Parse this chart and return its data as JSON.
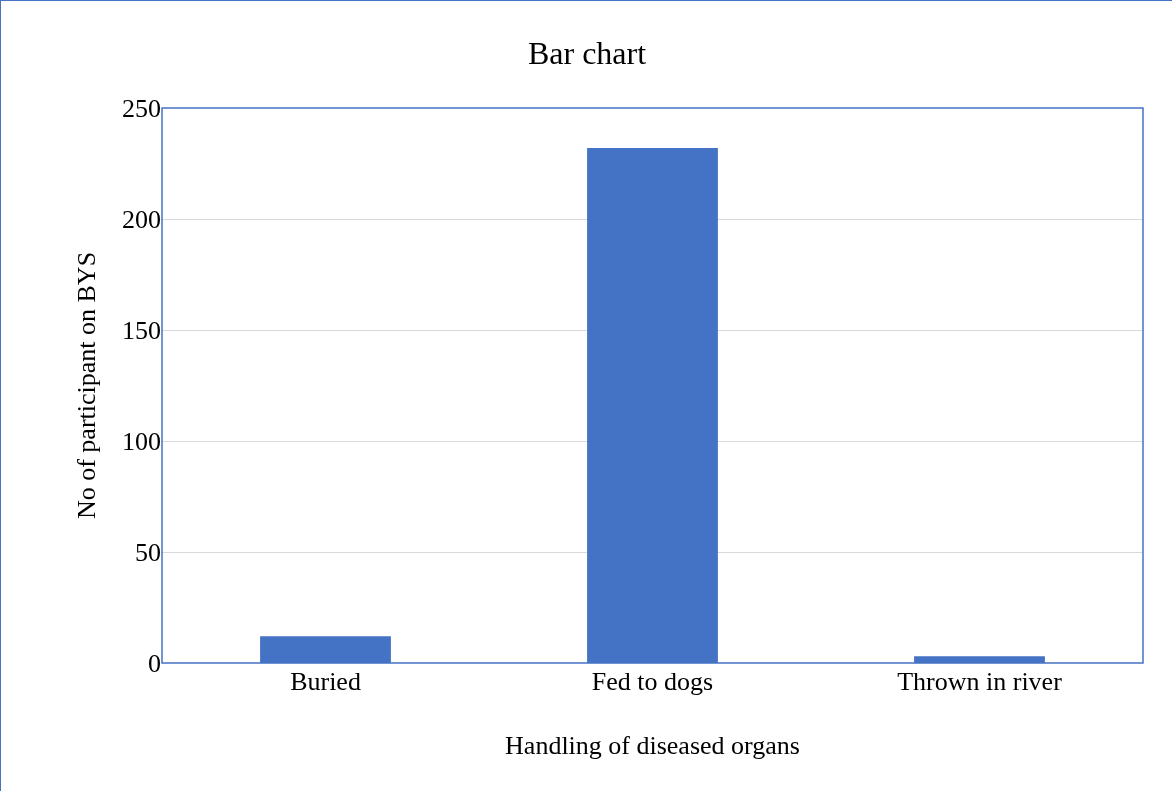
{
  "chart_data": {
    "type": "bar",
    "title": "Bar chart",
    "xlabel": "Handling of diseased organs",
    "ylabel": "No of participant on BYS",
    "categories": [
      "Buried",
      "Fed to dogs",
      "Thrown in river"
    ],
    "values": [
      12,
      232,
      3
    ],
    "color": "#4472c4",
    "ylim": [
      0,
      250
    ],
    "yticks": [
      0,
      50,
      100,
      150,
      200,
      250
    ],
    "grid": "y"
  }
}
